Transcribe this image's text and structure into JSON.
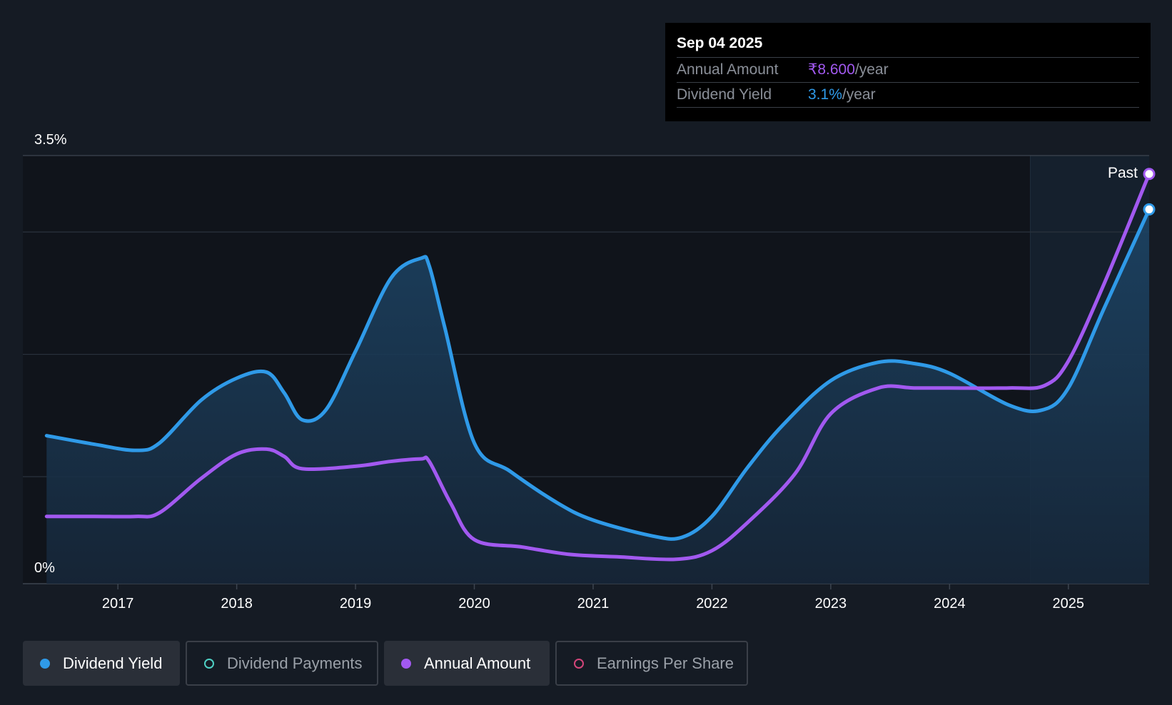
{
  "tooltip": {
    "date": "Sep 04 2025",
    "rows": [
      {
        "label": "Annual Amount",
        "value": "₹8.600",
        "unit": "/year",
        "color": "#a259f0"
      },
      {
        "label": "Dividend Yield",
        "value": "3.1%",
        "unit": "/year",
        "color": "#2f9ae8"
      }
    ]
  },
  "legend": [
    {
      "label": "Dividend Yield",
      "color": "#2f9ae8",
      "filled": true,
      "active": true
    },
    {
      "label": "Dividend Payments",
      "color": "#4fd1c5",
      "filled": false,
      "active": false
    },
    {
      "label": "Annual Amount",
      "color": "#a259f0",
      "filled": true,
      "active": true
    },
    {
      "label": "Earnings Per Share",
      "color": "#d3457a",
      "filled": false,
      "active": false
    }
  ],
  "chart_data": {
    "type": "line",
    "title": "",
    "xlabel": "",
    "ylabel": "",
    "ylim": [
      0,
      3.5
    ],
    "xlim": [
      2016.2,
      2025.68
    ],
    "y_tick_labels": [
      "3.5%",
      "0%"
    ],
    "x_ticks": [
      2017,
      2018,
      2019,
      2020,
      2021,
      2022,
      2023,
      2024,
      2025
    ],
    "x_tick_labels": [
      "2017",
      "2018",
      "2019",
      "2020",
      "2021",
      "2022",
      "2023",
      "2024",
      "2025"
    ],
    "past_label": "Past",
    "past_start": 2024.68,
    "series": [
      {
        "name": "Dividend Yield",
        "color": "#2f9ae8",
        "area": true,
        "x": [
          2016.4,
          2016.8,
          2017.15,
          2017.35,
          2017.7,
          2018.0,
          2018.25,
          2018.4,
          2018.55,
          2018.75,
          2019.0,
          2019.3,
          2019.55,
          2019.62,
          2019.75,
          2020.0,
          2020.3,
          2020.7,
          2021.0,
          2021.5,
          2021.75,
          2022.0,
          2022.3,
          2022.6,
          2023.0,
          2023.4,
          2023.7,
          2024.0,
          2024.5,
          2024.78,
          2025.0,
          2025.3,
          2025.68
        ],
        "y": [
          1.21,
          1.14,
          1.09,
          1.15,
          1.5,
          1.68,
          1.73,
          1.56,
          1.34,
          1.42,
          1.9,
          2.5,
          2.66,
          2.6,
          2.1,
          1.15,
          0.92,
          0.66,
          0.52,
          0.39,
          0.38,
          0.55,
          0.95,
          1.3,
          1.66,
          1.81,
          1.8,
          1.72,
          1.46,
          1.42,
          1.6,
          2.25,
          3.06
        ]
      },
      {
        "name": "Annual Amount",
        "color": "#a259f0",
        "area": false,
        "x": [
          2016.4,
          2016.8,
          2017.15,
          2017.35,
          2017.7,
          2018.0,
          2018.25,
          2018.4,
          2018.55,
          2019.0,
          2019.3,
          2019.55,
          2019.62,
          2019.8,
          2020.0,
          2020.4,
          2020.8,
          2021.2,
          2021.7,
          2022.0,
          2022.3,
          2022.7,
          2023.0,
          2023.4,
          2023.7,
          2024.0,
          2024.5,
          2024.8,
          2025.0,
          2025.3,
          2025.68
        ],
        "y": [
          0.55,
          0.55,
          0.55,
          0.58,
          0.86,
          1.06,
          1.1,
          1.04,
          0.94,
          0.96,
          1.0,
          1.02,
          1.0,
          0.66,
          0.36,
          0.3,
          0.24,
          0.22,
          0.2,
          0.27,
          0.5,
          0.9,
          1.39,
          1.6,
          1.6,
          1.6,
          1.6,
          1.62,
          1.82,
          2.45,
          3.35
        ]
      }
    ]
  }
}
